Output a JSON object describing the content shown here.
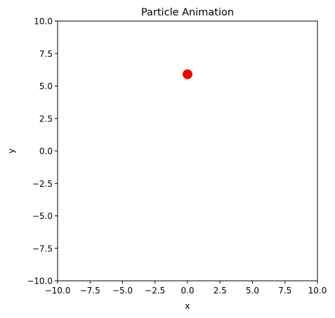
{
  "chart_data": {
    "type": "scatter",
    "title": "Particle Animation",
    "xlabel": "x",
    "ylabel": "y",
    "xlim": [
      -10,
      10
    ],
    "ylim": [
      -10,
      10
    ],
    "grid": false,
    "xticks": [
      -10.0,
      -7.5,
      -5.0,
      -2.5,
      0.0,
      2.5,
      5.0,
      7.5,
      10.0
    ],
    "yticks": [
      -10.0,
      -7.5,
      -5.0,
      -2.5,
      0.0,
      2.5,
      5.0,
      7.5,
      10.0
    ],
    "xtick_labels": [
      "−10.0",
      "−7.5",
      "−5.0",
      "−2.5",
      "0.0",
      "2.5",
      "5.0",
      "7.5",
      "10.0"
    ],
    "ytick_labels": [
      "−10.0",
      "−7.5",
      "−5.0",
      "−2.5",
      "0.0",
      "2.5",
      "5.0",
      "7.5",
      "10.0"
    ],
    "series": [
      {
        "color": "#ff0000",
        "points": [
          {
            "x": 0.0,
            "y": 5.9
          }
        ]
      }
    ]
  }
}
